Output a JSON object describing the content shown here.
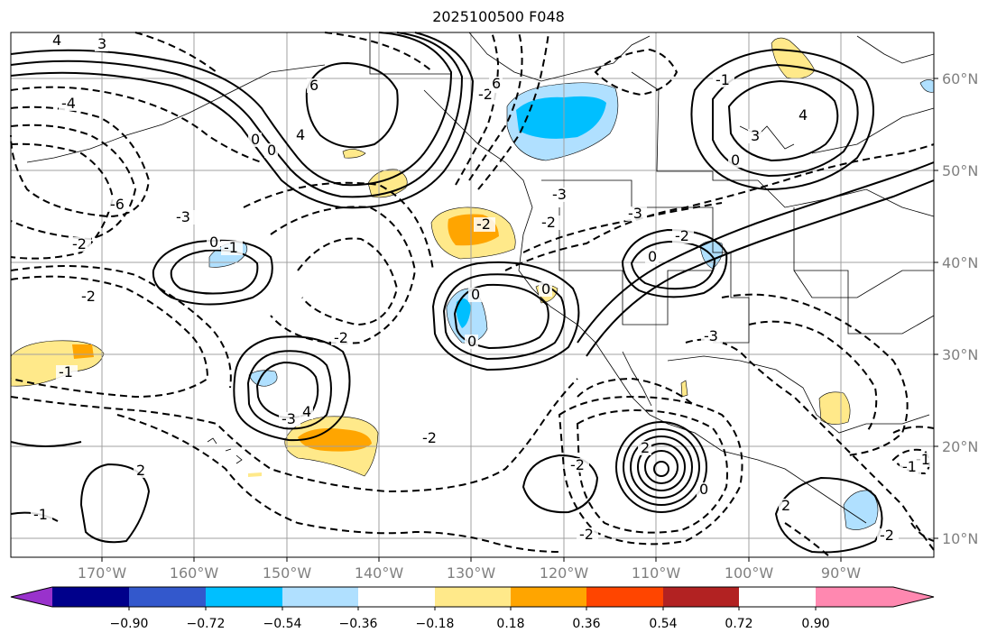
{
  "title": "2025100500 F048",
  "lat_labels": [
    "60°N",
    "50°N",
    "40°N",
    "30°N",
    "20°N",
    "10°N"
  ],
  "lon_labels": [
    "170°W",
    "160°W",
    "150°W",
    "140°W",
    "130°W",
    "120°W",
    "110°W",
    "100°W",
    "90°W"
  ],
  "colorbar": {
    "colors": [
      "#9932cc",
      "#00008b",
      "#3358cc",
      "#00bfff",
      "#b0e0ff",
      "#ffffff",
      "#ffe98a",
      "#ffa500",
      "#ff4500",
      "#b22222",
      "#ff88b0"
    ],
    "labels": [
      "−0.90",
      "−0.72",
      "−0.54",
      "−0.36",
      "−0.18",
      "0.18",
      "0.36",
      "0.54",
      "0.72",
      "0.90"
    ]
  },
  "contour_labels": [
    "4",
    "3",
    "-4",
    "-6",
    "-3",
    "-2",
    "-2",
    "6",
    "4",
    "0",
    "0",
    "0",
    "-1",
    "-1",
    "-2",
    "-3",
    "-2",
    "-2",
    "4",
    "-3",
    "-2",
    "-2",
    "2",
    "-1",
    "-2",
    "-2",
    "2",
    "0",
    "2",
    "-2",
    "-1",
    "-1",
    "0",
    "0",
    "-2",
    "-3",
    "-3",
    "0",
    "0",
    "-1",
    "0",
    "4",
    "3",
    "6",
    "0",
    "-3",
    "-2"
  ],
  "legend_note": ""
}
